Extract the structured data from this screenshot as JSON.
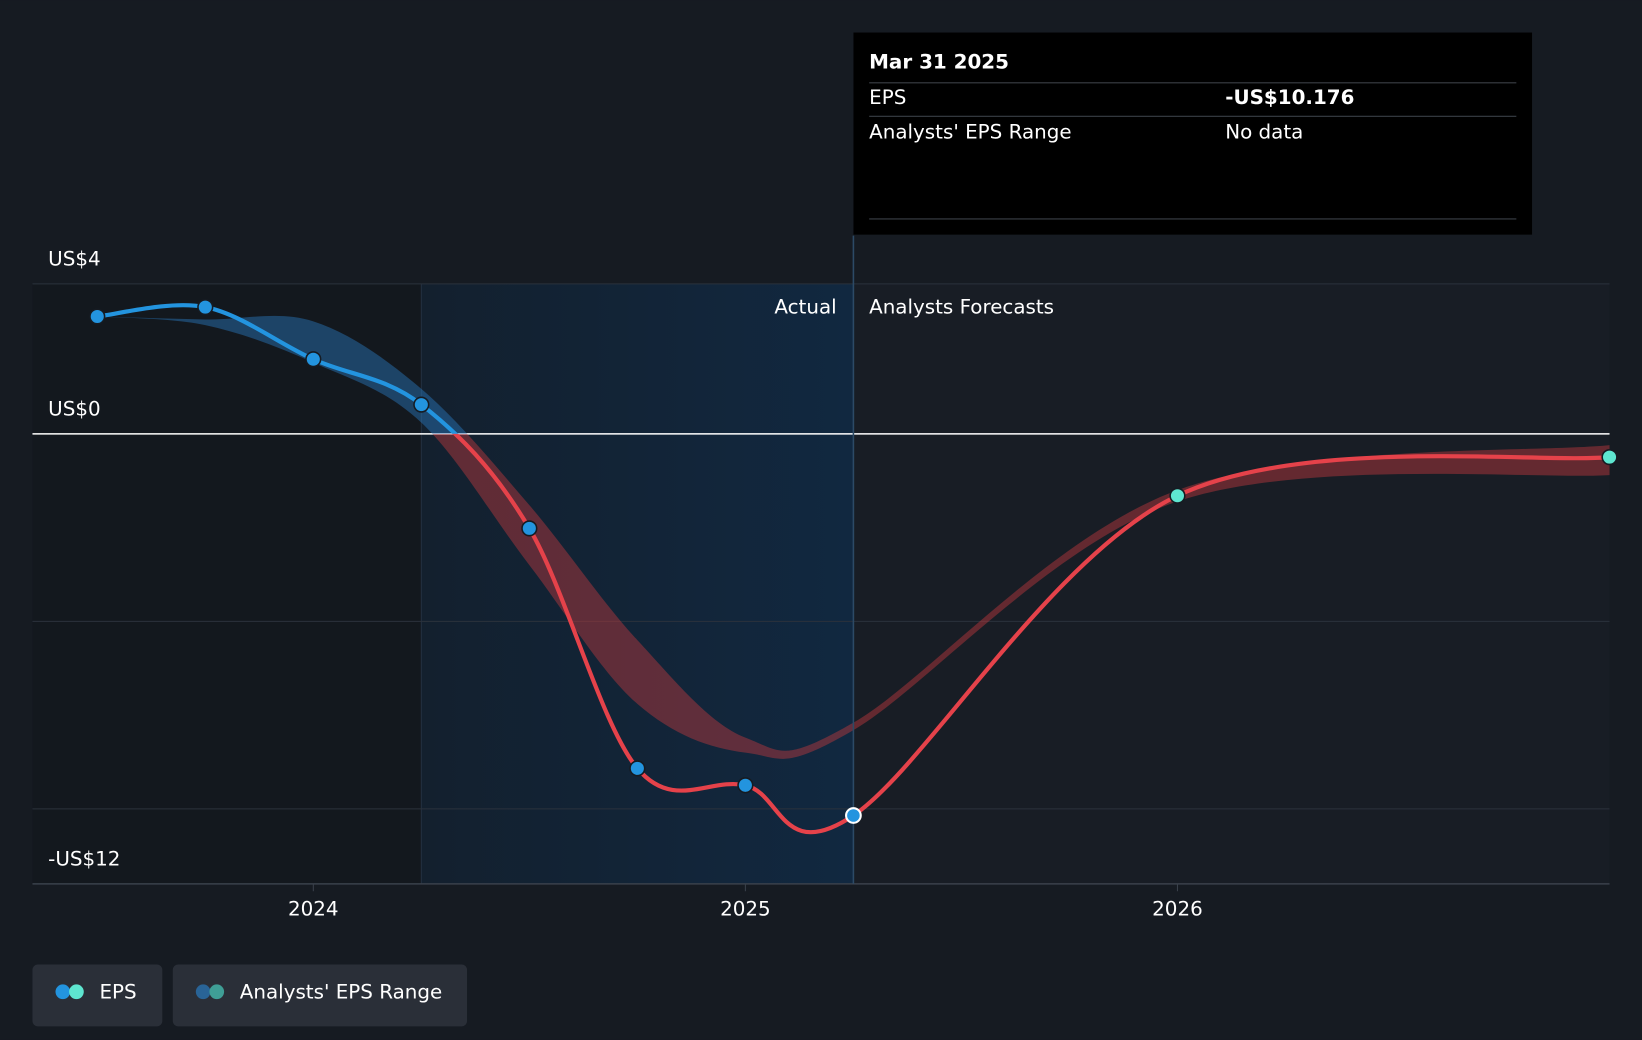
{
  "chart_data": {
    "type": "line",
    "x": [
      2023.5,
      2023.75,
      2024.0,
      2024.25,
      2024.5,
      2024.75,
      2025.0,
      2025.25,
      2026.0,
      2027.0
    ],
    "xlim": [
      2023.35,
      2027.0
    ],
    "xticks": [
      2024,
      2025,
      2026
    ],
    "ylim": [
      -12,
      4
    ],
    "yticks": [
      {
        "value": 4,
        "label": "US$4"
      },
      {
        "value": 0,
        "label": "US$0"
      },
      {
        "value": -12,
        "label": "-US$12"
      }
    ],
    "ygrid": [
      4,
      0,
      -5,
      -10
    ],
    "highlight": [
      2024.25,
      2025.25
    ],
    "period_labels": [
      "Actual",
      "Analysts Forecasts"
    ],
    "series": [
      {
        "name": "EPS",
        "color": "#2394df",
        "negative_color": "#e5424a",
        "forecast_color": "#5ee6d0",
        "values": [
          3.13,
          3.38,
          1.99,
          0.78,
          -2.52,
          -8.92,
          -9.37,
          -10.176,
          -1.65,
          -0.62
        ],
        "value_labels": [
          null,
          null,
          null,
          null,
          null,
          null,
          null,
          "-US$10.176",
          null,
          null
        ]
      },
      {
        "name": "Analysts' EPS Range",
        "color": "#2a7bc0",
        "negative_color": "#c0393f",
        "high": [
          3.13,
          3.05,
          3.0,
          1.2,
          -1.9,
          -5.5,
          -8.1,
          -7.7,
          -1.5,
          -0.3
        ],
        "low": [
          3.13,
          2.9,
          1.9,
          0.3,
          -3.5,
          -7.2,
          -8.5,
          -7.9,
          -1.8,
          -1.1
        ]
      }
    ],
    "tooltip": {
      "title": "Mar 31 2025",
      "rows": [
        {
          "label": "EPS",
          "value": "-US$10.176"
        },
        {
          "label": "Analysts' EPS Range",
          "value": "No data"
        }
      ]
    }
  }
}
